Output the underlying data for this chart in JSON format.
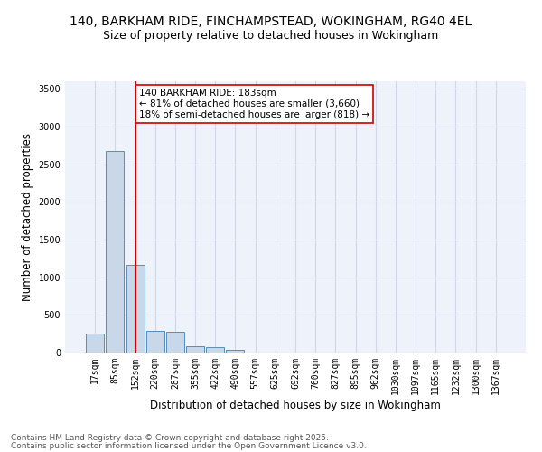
{
  "title_line1": "140, BARKHAM RIDE, FINCHAMPSTEAD, WOKINGHAM, RG40 4EL",
  "title_line2": "Size of property relative to detached houses in Wokingham",
  "xlabel": "Distribution of detached houses by size in Wokingham",
  "ylabel": "Number of detached properties",
  "categories": [
    "17sqm",
    "85sqm",
    "152sqm",
    "220sqm",
    "287sqm",
    "355sqm",
    "422sqm",
    "490sqm",
    "557sqm",
    "625sqm",
    "692sqm",
    "760sqm",
    "827sqm",
    "895sqm",
    "962sqm",
    "1030sqm",
    "1097sqm",
    "1165sqm",
    "1232sqm",
    "1300sqm",
    "1367sqm"
  ],
  "values": [
    255,
    2680,
    1160,
    285,
    275,
    90,
    75,
    40,
    5,
    0,
    0,
    0,
    0,
    0,
    0,
    0,
    0,
    0,
    0,
    0,
    0
  ],
  "bar_color": "#c8d8e8",
  "bar_edge_color": "#5b8db8",
  "bar_linewidth": 0.7,
  "vline_x": 2,
  "vline_color": "#cc0000",
  "annotation_text": "140 BARKHAM RIDE: 183sqm\n← 81% of detached houses are smaller (3,660)\n18% of semi-detached houses are larger (818) →",
  "annotation_box_edgecolor": "#cc0000",
  "annotation_box_facecolor": "white",
  "ylim": [
    0,
    3600
  ],
  "yticks": [
    0,
    500,
    1000,
    1500,
    2000,
    2500,
    3000,
    3500
  ],
  "grid_color": "#d0d8e8",
  "bg_color": "#eef2fb",
  "footer_line1": "Contains HM Land Registry data © Crown copyright and database right 2025.",
  "footer_line2": "Contains public sector information licensed under the Open Government Licence v3.0.",
  "title_fontsize": 10,
  "subtitle_fontsize": 9,
  "axis_label_fontsize": 8.5,
  "tick_fontsize": 7,
  "annotation_fontsize": 7.5,
  "footer_fontsize": 6.5
}
